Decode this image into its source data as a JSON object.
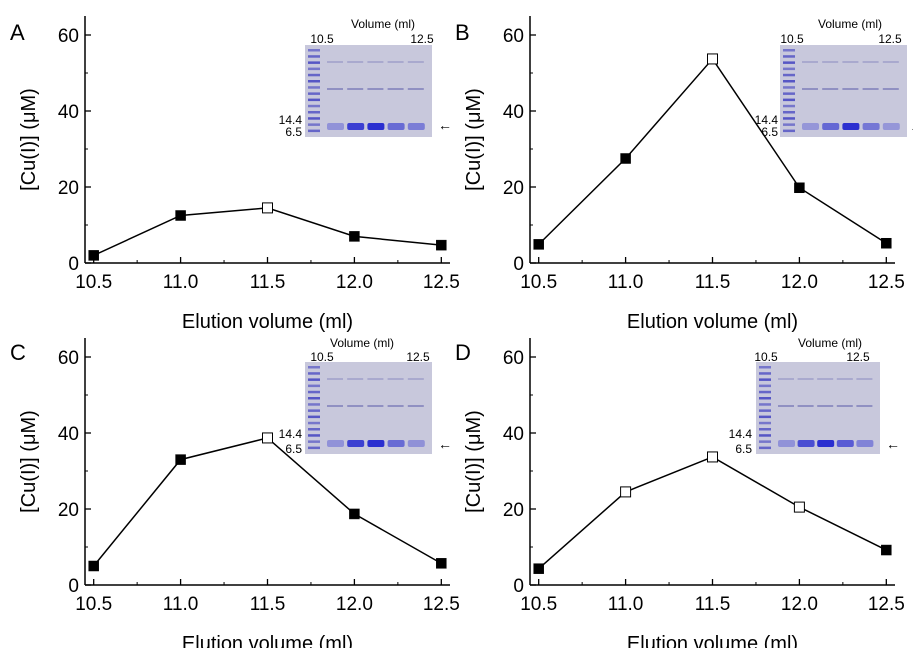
{
  "chart_data": [
    {
      "type": "line",
      "panel_label": "A",
      "xlabel": "Elution volume (ml)",
      "ylabel": "[Cu(I)] (μM)",
      "x": [
        10.5,
        11.0,
        11.5,
        12.0,
        12.5
      ],
      "xticks": [
        "10.5",
        "11.0",
        "11.5",
        "12.0",
        "12.5"
      ],
      "xlim": [
        10.45,
        12.55
      ],
      "ylim": [
        0,
        65
      ],
      "yticks": [
        0,
        20,
        40,
        60
      ],
      "series": [
        {
          "values": [
            2,
            12.5,
            14.5,
            7,
            4.7
          ],
          "markers": [
            "filled",
            "filled",
            "open",
            "filled",
            "filled"
          ]
        }
      ],
      "inset": {
        "title": "Volume (ml)",
        "x_start": "10.5",
        "x_end": "12.5",
        "markers": [
          "14.4",
          "6.5"
        ],
        "arrow": "←"
      }
    },
    {
      "type": "line",
      "panel_label": "B",
      "xlabel": "Elution volume (ml)",
      "ylabel": "[Cu(I)] (μM)",
      "x": [
        10.5,
        11.0,
        11.5,
        12.0,
        12.5
      ],
      "xticks": [
        "10.5",
        "11.0",
        "11.5",
        "12.0",
        "12.5"
      ],
      "xlim": [
        10.45,
        12.55
      ],
      "ylim": [
        0,
        65
      ],
      "yticks": [
        0,
        20,
        40,
        60
      ],
      "series": [
        {
          "values": [
            4.9,
            27.5,
            53.7,
            19.8,
            5.2
          ],
          "markers": [
            "filled",
            "filled",
            "open",
            "filled",
            "filled"
          ]
        }
      ],
      "inset": {
        "title": "Volume (ml)",
        "x_start": "10.5",
        "x_end": "12.5",
        "markers": [
          "14.4",
          "6.5"
        ],
        "arrow": "◂"
      }
    },
    {
      "type": "line",
      "panel_label": "C",
      "xlabel": "Elution volume (ml)",
      "ylabel": "[Cu(I)] (μM)",
      "x": [
        10.5,
        11.0,
        11.5,
        12.0,
        12.5
      ],
      "xticks": [
        "10.5",
        "11.0",
        "11.5",
        "12.0",
        "12.5"
      ],
      "xlim": [
        10.45,
        12.55
      ],
      "ylim": [
        0,
        65
      ],
      "yticks": [
        0,
        20,
        40,
        60
      ],
      "series": [
        {
          "values": [
            5,
            33,
            38.7,
            18.7,
            5.7
          ],
          "markers": [
            "filled",
            "filled",
            "open",
            "filled",
            "filled"
          ]
        }
      ],
      "inset": {
        "title": "Volume (ml)",
        "x_start": "10.5",
        "x_end": "12.5",
        "markers": [
          "14.4",
          "6.5"
        ],
        "arrow": "←"
      }
    },
    {
      "type": "line",
      "panel_label": "D",
      "xlabel": "Elution volume (ml)",
      "ylabel": "[Cu(I)] (μM)",
      "x": [
        10.5,
        11.0,
        11.5,
        12.0,
        12.5
      ],
      "xticks": [
        "10.5",
        "11.0",
        "11.5",
        "12.0",
        "12.5"
      ],
      "xlim": [
        10.45,
        12.55
      ],
      "ylim": [
        0,
        65
      ],
      "yticks": [
        0,
        20,
        40,
        60
      ],
      "series": [
        {
          "values": [
            4.3,
            24.5,
            33.7,
            20.5,
            9.2
          ],
          "markers": [
            "filled",
            "open",
            "open",
            "open",
            "filled"
          ]
        }
      ],
      "inset": {
        "title": "Volume (ml)",
        "x_start": "10.5",
        "x_end": "12.5",
        "markers": [
          "14.4",
          "6.5"
        ],
        "arrow": "←"
      }
    }
  ],
  "colors": {
    "line": "#000000",
    "marker_fill": "#000000",
    "marker_open_fill": "#ffffff",
    "gel_bg": "#c8c8dc",
    "gel_band": "#2b2fd0",
    "ladder": "#4040c0"
  }
}
